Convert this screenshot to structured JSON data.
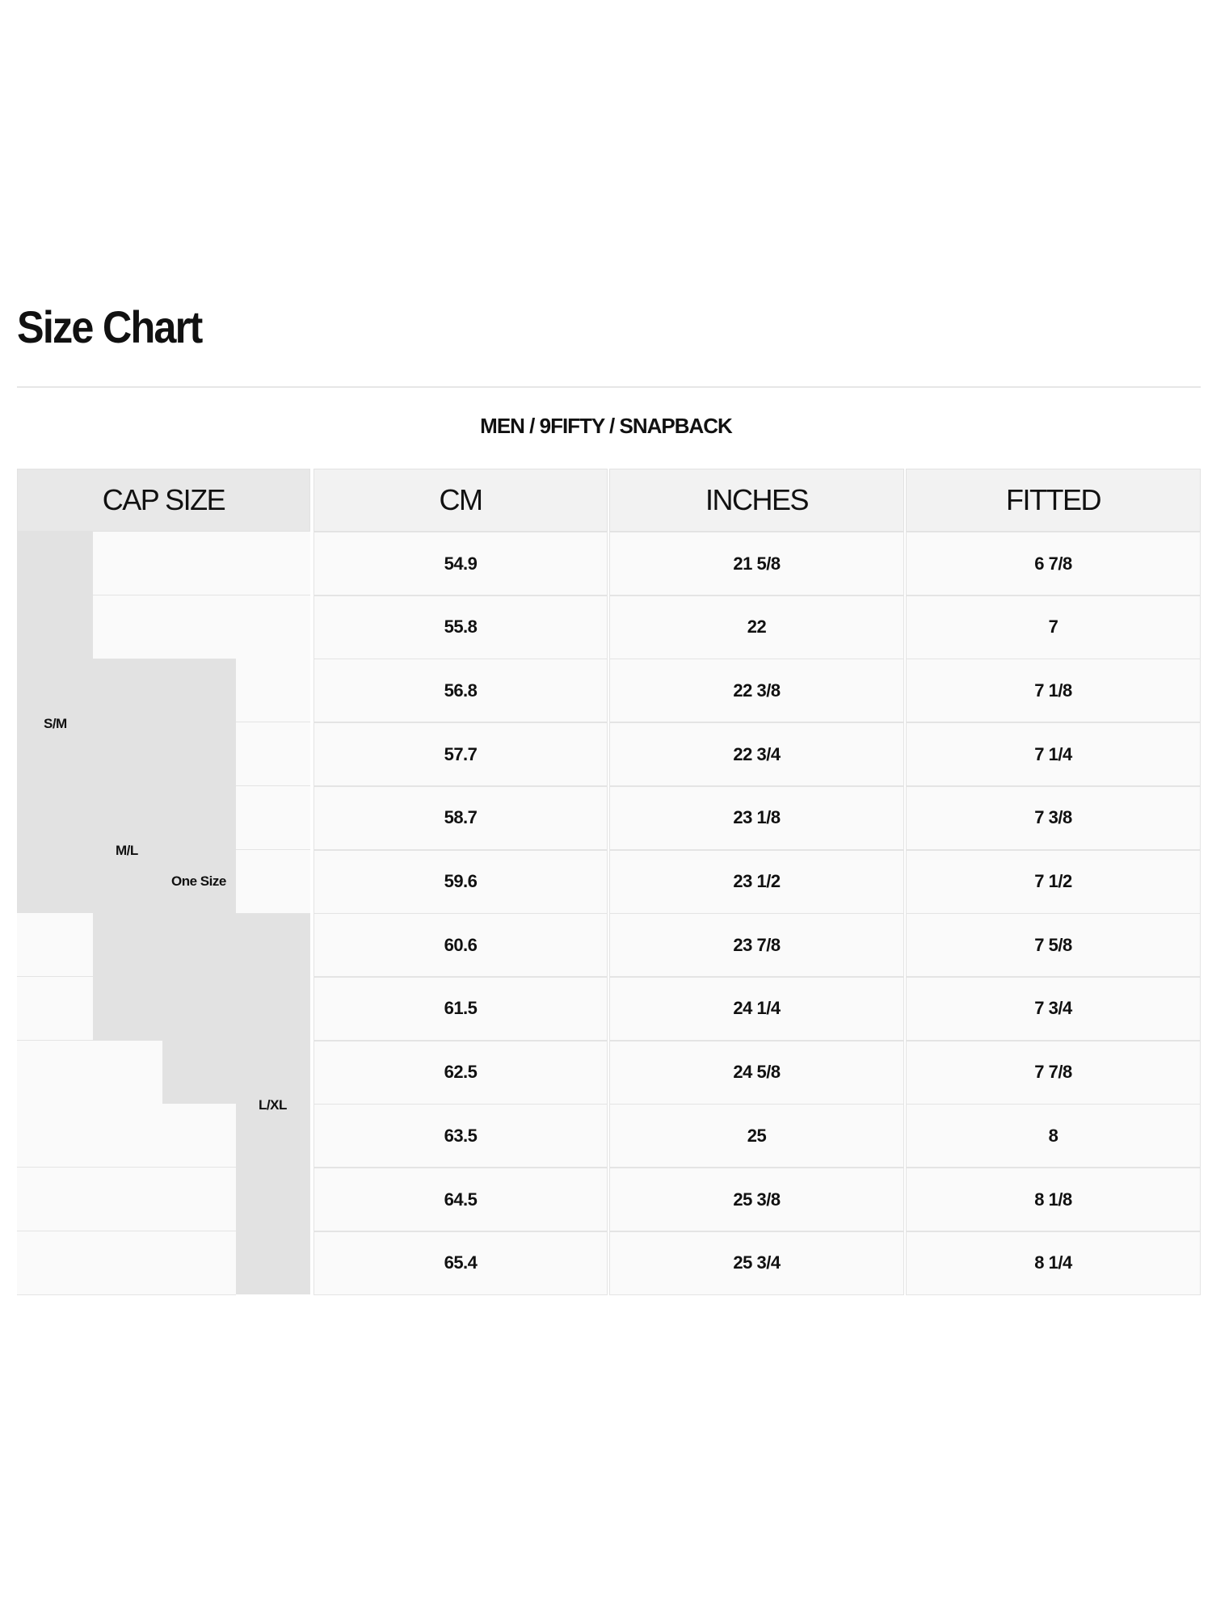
{
  "page": {
    "title": "Size Chart",
    "subtitle": "MEN / 9FIFTY / SNAPBACK"
  },
  "table": {
    "headers": [
      "CAP SIZE",
      "CM",
      "INCHES",
      "FITTED"
    ],
    "cap_sizes": [
      "S/M",
      "M/L",
      "One Size",
      "L/XL"
    ],
    "rows": [
      [
        "54.9",
        "21 5/8",
        "6 7/8"
      ],
      [
        "55.8",
        "22",
        "7"
      ],
      [
        "56.8",
        "22 3/8",
        "7 1/8"
      ],
      [
        "57.7",
        "22 3/4",
        "7 1/4"
      ],
      [
        "58.7",
        "23 1/8",
        "7 3/8"
      ],
      [
        "59.6",
        "23 1/2",
        "7 1/2"
      ],
      [
        "60.6",
        "23 7/8",
        "7 5/8"
      ],
      [
        "61.5",
        "24 1/4",
        "7 3/4"
      ],
      [
        "62.5",
        "24 5/8",
        "7 7/8"
      ],
      [
        "63.5",
        "25",
        "8"
      ],
      [
        "64.5",
        "25 3/8",
        "8 1/8"
      ],
      [
        "65.4",
        "25 3/4",
        "8 1/4"
      ]
    ]
  },
  "colors": {
    "size_band": "#e2e2e2",
    "cell": "#fafafa",
    "header": "#f2f2f2"
  }
}
